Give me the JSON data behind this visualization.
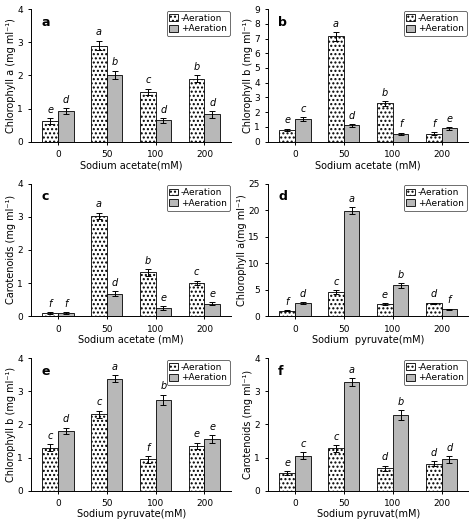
{
  "categories": [
    0,
    50,
    100,
    200
  ],
  "subplots": [
    {
      "label": "a",
      "ylabel": "Chlorophyll a (mg ml⁻¹)",
      "xlabel": "Sodium acetate(mM)",
      "ylim": [
        0,
        4
      ],
      "yticks": [
        0,
        1,
        2,
        3,
        4
      ],
      "no_aer": [
        0.62,
        2.9,
        1.5,
        1.9
      ],
      "aer": [
        0.92,
        2.02,
        0.64,
        0.82
      ],
      "no_aer_err": [
        0.08,
        0.15,
        0.1,
        0.1
      ],
      "aer_err": [
        0.1,
        0.12,
        0.07,
        0.1
      ],
      "no_aer_letters": [
        "e",
        "a",
        "c",
        "b"
      ],
      "aer_letters": [
        "d",
        "b",
        "d",
        "d"
      ]
    },
    {
      "label": "b",
      "ylabel": "Chlorophyll b (mg ml⁻¹)",
      "xlabel": "Sodium acetate (mM)",
      "ylim": [
        0,
        9
      ],
      "yticks": [
        0,
        1,
        2,
        3,
        4,
        5,
        6,
        7,
        8,
        9
      ],
      "no_aer": [
        0.8,
        7.15,
        2.6,
        0.55
      ],
      "aer": [
        1.55,
        1.1,
        0.55,
        0.9
      ],
      "no_aer_err": [
        0.08,
        0.3,
        0.15,
        0.08
      ],
      "aer_err": [
        0.12,
        0.1,
        0.07,
        0.1
      ],
      "no_aer_letters": [
        "e",
        "a",
        "b",
        "f"
      ],
      "aer_letters": [
        "c",
        "d",
        "f",
        "e"
      ]
    },
    {
      "label": "c",
      "ylabel": "Carotenoids (mg ml⁻¹)",
      "xlabel": "Sodium acetate (mM)",
      "ylim": [
        0,
        4
      ],
      "yticks": [
        0,
        1,
        2,
        3,
        4
      ],
      "no_aer": [
        0.1,
        3.02,
        1.32,
        1.0
      ],
      "aer": [
        0.1,
        0.68,
        0.25,
        0.38
      ],
      "no_aer_err": [
        0.02,
        0.1,
        0.1,
        0.07
      ],
      "aer_err": [
        0.02,
        0.07,
        0.05,
        0.05
      ],
      "no_aer_letters": [
        "f",
        "a",
        "b",
        "c"
      ],
      "aer_letters": [
        "f",
        "d",
        "e",
        "e"
      ]
    },
    {
      "label": "d",
      "ylabel": "Chlorophyll a(mg ml⁻¹)",
      "xlabel": "Sodium  pyruvate(mM)",
      "ylim": [
        0,
        25
      ],
      "yticks": [
        0,
        5,
        10,
        15,
        20,
        25
      ],
      "no_aer": [
        1.0,
        4.5,
        2.3,
        2.4
      ],
      "aer": [
        2.5,
        19.9,
        5.8,
        1.3
      ],
      "no_aer_err": [
        0.1,
        0.4,
        0.2,
        0.15
      ],
      "aer_err": [
        0.2,
        0.6,
        0.4,
        0.1
      ],
      "no_aer_letters": [
        "f",
        "c",
        "e",
        "d"
      ],
      "aer_letters": [
        "d",
        "a",
        "b",
        "f"
      ]
    },
    {
      "label": "e",
      "ylabel": "Chlorophyll b (mg ml⁻¹)",
      "xlabel": "Sodium pyruvate(mM)",
      "ylim": [
        0,
        4
      ],
      "yticks": [
        0,
        1,
        2,
        3,
        4
      ],
      "no_aer": [
        1.3,
        2.3,
        0.95,
        1.35
      ],
      "aer": [
        1.8,
        3.38,
        2.75,
        1.55
      ],
      "no_aer_err": [
        0.1,
        0.12,
        0.1,
        0.1
      ],
      "aer_err": [
        0.1,
        0.1,
        0.15,
        0.12
      ],
      "no_aer_letters": [
        "c",
        "c",
        "f",
        "e"
      ],
      "aer_letters": [
        "d",
        "a",
        "b",
        "e"
      ]
    },
    {
      "label": "f",
      "ylabel": "Carotenoids (mg ml⁻¹)",
      "xlabel": "Sodium pyruvat(mM)",
      "ylim": [
        0,
        4
      ],
      "yticks": [
        0,
        1,
        2,
        3,
        4
      ],
      "no_aer": [
        0.52,
        1.28,
        0.68,
        0.82
      ],
      "aer": [
        1.06,
        3.28,
        2.28,
        0.95
      ],
      "no_aer_err": [
        0.06,
        0.1,
        0.08,
        0.08
      ],
      "aer_err": [
        0.1,
        0.12,
        0.15,
        0.1
      ],
      "no_aer_letters": [
        "e",
        "c",
        "d",
        "d"
      ],
      "aer_letters": [
        "c",
        "a",
        "b",
        "d"
      ]
    }
  ],
  "bar_width": 0.32,
  "background_color": "#ffffff",
  "letter_fontsize": 9,
  "axis_label_fontsize": 7,
  "tick_fontsize": 6.5,
  "legend_fontsize": 6.5,
  "annot_fontsize": 7
}
